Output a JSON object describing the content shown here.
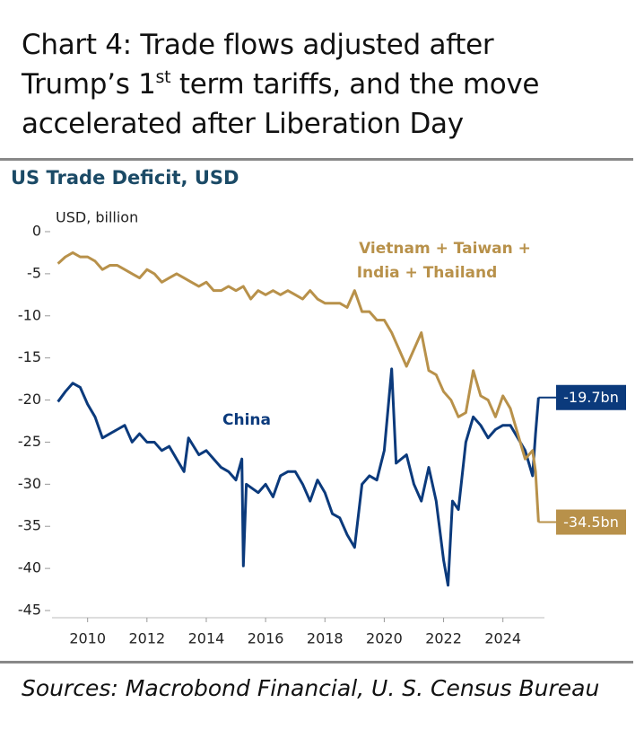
{
  "chart_data": {
    "type": "line",
    "title_line1": "Chart 4: Trade flows adjusted after",
    "title_line2_start": "Trump’s 1",
    "title_sup": "st",
    "title_line2_end": " term tariffs, and the move",
    "title_line3": "accelerated after Liberation Day",
    "subtitle": "US Trade Deficit, USD",
    "y_axis_label": "USD, billion",
    "source": "Sources: Macrobond Financial, U. S. Census Bureau",
    "xlim": [
      2008.8,
      2025.4
    ],
    "xticks": [
      2010,
      2012,
      2014,
      2016,
      2018,
      2020,
      2022,
      2024
    ],
    "ylim": [
      -45,
      0
    ],
    "yticks": [
      0,
      -5,
      -10,
      -15,
      -20,
      -25,
      -30,
      -35,
      -40,
      -45
    ],
    "series": [
      {
        "name": "China",
        "color": "#0b3a7c",
        "end_label": "-19.7bn",
        "x": [
          2009.0,
          2009.25,
          2009.5,
          2009.75,
          2010.0,
          2010.25,
          2010.5,
          2010.75,
          2011.0,
          2011.25,
          2011.5,
          2011.75,
          2012.0,
          2012.25,
          2012.5,
          2012.75,
          2013.0,
          2013.25,
          2013.4,
          2013.75,
          2014.0,
          2014.25,
          2014.5,
          2014.75,
          2015.0,
          2015.2,
          2015.25,
          2015.35,
          2015.75,
          2016.0,
          2016.25,
          2016.5,
          2016.75,
          2017.0,
          2017.25,
          2017.5,
          2017.75,
          2018.0,
          2018.25,
          2018.5,
          2018.75,
          2019.0,
          2019.25,
          2019.5,
          2019.75,
          2020.0,
          2020.25,
          2020.4,
          2020.75,
          2021.0,
          2021.25,
          2021.5,
          2021.75,
          2022.0,
          2022.15,
          2022.3,
          2022.5,
          2022.75,
          2023.0,
          2023.25,
          2023.5,
          2023.75,
          2024.0,
          2024.25,
          2024.5,
          2024.75,
          2025.0,
          2025.1,
          2025.2
        ],
        "values": [
          -20.2,
          -19,
          -18,
          -18.5,
          -20.5,
          -22,
          -24.5,
          -24,
          -23.5,
          -23,
          -25,
          -24,
          -25,
          -25,
          -26,
          -25.5,
          -27,
          -28.5,
          -24.5,
          -26.5,
          -26,
          -27,
          -28,
          -28.5,
          -29.5,
          -27,
          -39.7,
          -30,
          -31,
          -30,
          -31.5,
          -29,
          -28.5,
          -28.5,
          -30,
          -32,
          -29.5,
          -31,
          -33.5,
          -34,
          -36,
          -37.5,
          -30,
          -29,
          -29.5,
          -26,
          -16.3,
          -27.5,
          -26.5,
          -30,
          -32,
          -28,
          -32,
          -39,
          -42,
          -32,
          -33,
          -25,
          -22,
          -23,
          -24.5,
          -23.5,
          -23,
          -23,
          -24.5,
          -26,
          -29,
          -24,
          -19.7
        ]
      },
      {
        "name": "Vietnam + Taiwan + India + Thailand",
        "name_line1": "Vietnam + Taiwan +",
        "name_line2": "India + Thailand",
        "color": "#b8914a",
        "end_label": "-34.5bn",
        "x": [
          2009.0,
          2009.25,
          2009.5,
          2009.75,
          2010.0,
          2010.25,
          2010.5,
          2010.75,
          2011.0,
          2011.25,
          2011.5,
          2011.75,
          2012.0,
          2012.25,
          2012.5,
          2012.75,
          2013.0,
          2013.25,
          2013.5,
          2013.75,
          2014.0,
          2014.25,
          2014.5,
          2014.75,
          2015.0,
          2015.25,
          2015.5,
          2015.75,
          2016.0,
          2016.25,
          2016.5,
          2016.75,
          2017.0,
          2017.25,
          2017.5,
          2017.75,
          2018.0,
          2018.25,
          2018.5,
          2018.75,
          2019.0,
          2019.25,
          2019.5,
          2019.75,
          2020.0,
          2020.25,
          2020.5,
          2020.75,
          2021.0,
          2021.25,
          2021.5,
          2021.75,
          2022.0,
          2022.25,
          2022.5,
          2022.75,
          2023.0,
          2023.25,
          2023.5,
          2023.75,
          2024.0,
          2024.25,
          2024.5,
          2024.75,
          2025.0,
          2025.1,
          2025.2
        ],
        "values": [
          -3.8,
          -3,
          -2.5,
          -3,
          -3,
          -3.5,
          -4.5,
          -4,
          -4,
          -4.5,
          -5,
          -5.5,
          -4.5,
          -5,
          -6,
          -5.5,
          -5,
          -5.5,
          -6,
          -6.5,
          -6,
          -7,
          -7,
          -6.5,
          -7,
          -6.5,
          -8,
          -7,
          -7.5,
          -7,
          -7.5,
          -7,
          -7.5,
          -8,
          -7,
          -8,
          -8.5,
          -8.5,
          -8.5,
          -9,
          -7,
          -9.5,
          -9.5,
          -10.5,
          -10.5,
          -12,
          -14,
          -16,
          -14,
          -12,
          -16.5,
          -17,
          -19,
          -20,
          -22,
          -21.5,
          -16.5,
          -19.5,
          -20,
          -22,
          -19.5,
          -21,
          -24,
          -27,
          -26,
          -28.5,
          -34.5
        ]
      }
    ]
  }
}
